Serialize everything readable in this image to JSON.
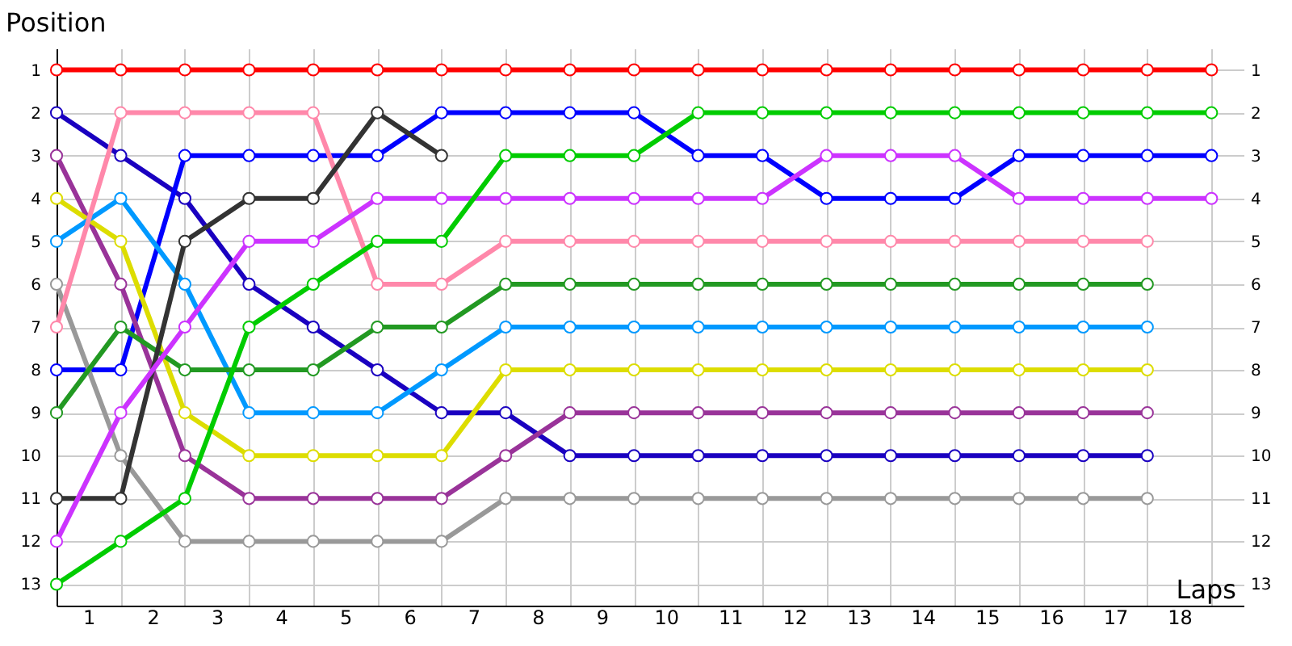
{
  "chart_data": {
    "type": "line",
    "xlabel": "Laps",
    "ylabel": "Position",
    "x": [
      0,
      1,
      2,
      3,
      4,
      5,
      6,
      7,
      8,
      9,
      10,
      11,
      12,
      13,
      14,
      15,
      16,
      17,
      18
    ],
    "xlim": [
      0,
      18.5
    ],
    "xticks": [
      {
        "value": 0,
        "label": null
      },
      {
        "value": 0.5,
        "label": "1"
      },
      {
        "value": 1,
        "label": null
      },
      {
        "value": 1.5,
        "label": "2"
      },
      {
        "value": 2,
        "label": null
      },
      {
        "value": 2.5,
        "label": "3"
      },
      {
        "value": 3,
        "label": null
      },
      {
        "value": 3.5,
        "label": "4"
      },
      {
        "value": 4,
        "label": null
      },
      {
        "value": 4.5,
        "label": "5"
      },
      {
        "value": 5,
        "label": null
      },
      {
        "value": 5.5,
        "label": "6"
      },
      {
        "value": 6,
        "label": null
      },
      {
        "value": 6.5,
        "label": "7"
      },
      {
        "value": 7,
        "label": null
      },
      {
        "value": 7.5,
        "label": "8"
      },
      {
        "value": 8,
        "label": null
      },
      {
        "value": 8.5,
        "label": "9"
      },
      {
        "value": 9,
        "label": null
      },
      {
        "value": 9.5,
        "label": "10"
      },
      {
        "value": 10,
        "label": null
      },
      {
        "value": 10.5,
        "label": "11"
      },
      {
        "value": 11,
        "label": null
      },
      {
        "value": 11.5,
        "label": "12"
      },
      {
        "value": 12,
        "label": null
      },
      {
        "value": 12.5,
        "label": "13"
      },
      {
        "value": 13,
        "label": null
      },
      {
        "value": 13.5,
        "label": "14"
      },
      {
        "value": 14,
        "label": null
      },
      {
        "value": 14.5,
        "label": "15"
      },
      {
        "value": 15,
        "label": null
      },
      {
        "value": 15.5,
        "label": "16"
      },
      {
        "value": 16,
        "label": null
      },
      {
        "value": 16.5,
        "label": "17"
      },
      {
        "value": 17,
        "label": null
      },
      {
        "value": 17.5,
        "label": "18"
      },
      {
        "value": 18,
        "label": null
      }
    ],
    "ylim": [
      13.5,
      0.5
    ],
    "yticks": [
      1,
      2,
      3,
      4,
      5,
      6,
      7,
      8,
      9,
      10,
      11,
      12,
      13
    ],
    "y2lim": [
      13.5,
      0.5
    ],
    "y2ticks": [
      1,
      2,
      3,
      4,
      5,
      6,
      7,
      8,
      9,
      10,
      11,
      12,
      13
    ],
    "grid": true,
    "marker": "circle",
    "line_style": "solid",
    "series": [
      {
        "color": "#ff0000",
        "values": [
          1,
          1,
          1,
          1,
          1,
          1,
          1,
          1,
          1,
          1,
          1,
          1,
          1,
          1,
          1,
          1,
          1,
          1,
          1
        ]
      },
      {
        "color": "#1a00c0",
        "values": [
          2,
          3,
          4,
          6,
          7,
          8,
          9,
          9,
          10,
          10,
          10,
          10,
          10,
          10,
          10,
          10,
          10,
          10,
          null
        ]
      },
      {
        "color": "#0000ff",
        "values": [
          8,
          8,
          3,
          3,
          3,
          3,
          2,
          2,
          2,
          2,
          3,
          3,
          4,
          4,
          4,
          3,
          3,
          3,
          3
        ]
      },
      {
        "color": "#993399",
        "values": [
          3,
          6,
          10,
          11,
          11,
          11,
          11,
          10,
          9,
          9,
          9,
          9,
          9,
          9,
          9,
          9,
          9,
          9,
          null
        ]
      },
      {
        "color": "#dddd00",
        "values": [
          4,
          5,
          9,
          10,
          10,
          10,
          10,
          8,
          8,
          8,
          8,
          8,
          8,
          8,
          8,
          8,
          8,
          8,
          null
        ]
      },
      {
        "color": "#0099ff",
        "values": [
          5,
          4,
          6,
          9,
          9,
          9,
          8,
          7,
          7,
          7,
          7,
          7,
          7,
          7,
          7,
          7,
          7,
          7,
          null
        ]
      },
      {
        "color": "#999999",
        "values": [
          6,
          10,
          12,
          12,
          12,
          12,
          12,
          11,
          11,
          11,
          11,
          11,
          11,
          11,
          11,
          11,
          11,
          11,
          null
        ]
      },
      {
        "color": "#ff88aa",
        "values": [
          7,
          2,
          2,
          2,
          2,
          6,
          6,
          5,
          5,
          5,
          5,
          5,
          5,
          5,
          5,
          5,
          5,
          5,
          null
        ]
      },
      {
        "color": "#229922",
        "values": [
          9,
          7,
          8,
          8,
          8,
          7,
          7,
          6,
          6,
          6,
          6,
          6,
          6,
          6,
          6,
          6,
          6,
          6,
          null
        ]
      },
      {
        "color": "#333333",
        "values": [
          11,
          11,
          5,
          4,
          4,
          2,
          3,
          null,
          null,
          null,
          null,
          null,
          null,
          null,
          null,
          null,
          null,
          null,
          null
        ]
      },
      {
        "color": "#cc33ff",
        "values": [
          12,
          9,
          7,
          5,
          5,
          4,
          4,
          4,
          4,
          4,
          4,
          4,
          3,
          3,
          3,
          4,
          4,
          4,
          4
        ]
      },
      {
        "color": "#00cc00",
        "values": [
          13,
          12,
          11,
          7,
          6,
          5,
          5,
          3,
          3,
          3,
          2,
          2,
          2,
          2,
          2,
          2,
          2,
          2,
          2
        ]
      }
    ]
  }
}
